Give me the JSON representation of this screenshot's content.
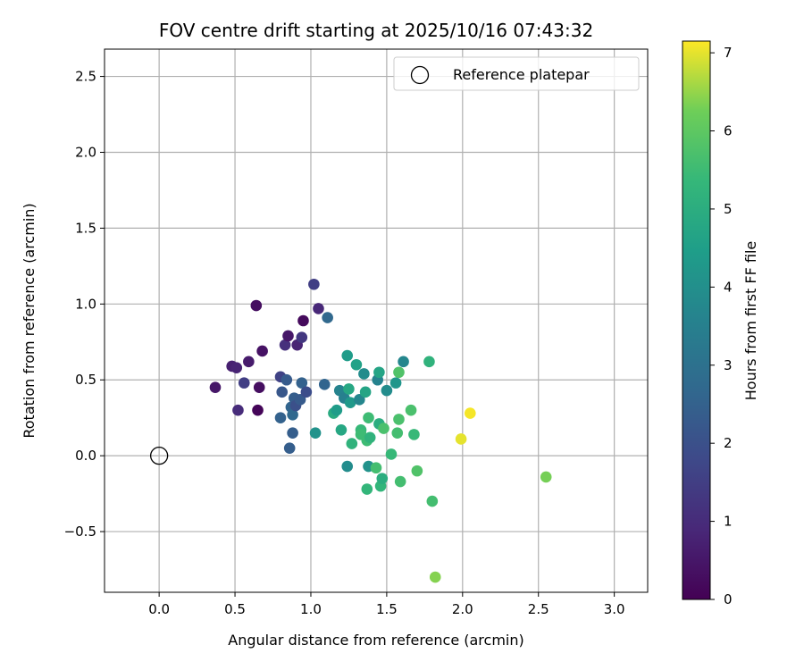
{
  "chart_data": {
    "type": "scatter",
    "title": "FOV centre drift starting at 2025/10/16 07:43:32",
    "xlabel": "Angular distance from reference (arcmin)",
    "ylabel": "Rotation from reference (arcmin)",
    "xlim": [
      -0.36,
      3.22
    ],
    "ylim": [
      -0.9,
      2.68
    ],
    "xticks": [
      0.0,
      0.5,
      1.0,
      1.5,
      2.0,
      2.5,
      3.0
    ],
    "xtick_labels": [
      "0.0",
      "0.5",
      "1.0",
      "1.5",
      "2.0",
      "2.5",
      "3.0"
    ],
    "yticks": [
      -0.5,
      0.0,
      0.5,
      1.0,
      1.5,
      2.0,
      2.5
    ],
    "ytick_labels": [
      "−0.5",
      "0.0",
      "0.5",
      "1.0",
      "1.5",
      "2.0",
      "2.5"
    ],
    "grid": true,
    "legend": {
      "position": "top-right",
      "entries": [
        "Reference platepar"
      ]
    },
    "reference_point": {
      "x": 0.0,
      "y": 0.0
    },
    "colorbar": {
      "label": "Hours from first FF file",
      "range": [
        0,
        7.15
      ],
      "ticks": [
        0,
        1,
        2,
        3,
        4,
        5,
        6,
        7
      ],
      "tick_labels": [
        "0",
        "1",
        "2",
        "3",
        "4",
        "5",
        "6",
        "7"
      ],
      "colormap": "viridis"
    },
    "points": [
      {
        "x": 0.37,
        "y": 0.45,
        "c": 0.5
      },
      {
        "x": 0.48,
        "y": 0.59,
        "c": 0.7
      },
      {
        "x": 0.51,
        "y": 0.58,
        "c": 0.8
      },
      {
        "x": 0.52,
        "y": 0.3,
        "c": 1.0
      },
      {
        "x": 0.56,
        "y": 0.48,
        "c": 1.5
      },
      {
        "x": 0.59,
        "y": 0.62,
        "c": 0.6
      },
      {
        "x": 0.64,
        "y": 0.99,
        "c": 0.3
      },
      {
        "x": 0.65,
        "y": 0.3,
        "c": 0.1
      },
      {
        "x": 0.66,
        "y": 0.45,
        "c": 0.3
      },
      {
        "x": 0.68,
        "y": 0.69,
        "c": 0.4
      },
      {
        "x": 0.8,
        "y": 0.52,
        "c": 1.6
      },
      {
        "x": 0.8,
        "y": 0.25,
        "c": 2.5
      },
      {
        "x": 0.81,
        "y": 0.42,
        "c": 2.2
      },
      {
        "x": 0.83,
        "y": 0.73,
        "c": 1.1
      },
      {
        "x": 0.84,
        "y": 0.5,
        "c": 2.3
      },
      {
        "x": 0.85,
        "y": 0.79,
        "c": 0.5
      },
      {
        "x": 0.86,
        "y": 0.05,
        "c": 2.4
      },
      {
        "x": 0.87,
        "y": 0.32,
        "c": 2.6
      },
      {
        "x": 0.88,
        "y": 0.15,
        "c": 2.4
      },
      {
        "x": 0.88,
        "y": 0.27,
        "c": 2.7
      },
      {
        "x": 0.89,
        "y": 0.38,
        "c": 2.4
      },
      {
        "x": 0.9,
        "y": 0.33,
        "c": 2.0
      },
      {
        "x": 0.91,
        "y": 0.73,
        "c": 0.8
      },
      {
        "x": 0.93,
        "y": 0.37,
        "c": 2.3
      },
      {
        "x": 0.94,
        "y": 0.78,
        "c": 1.3
      },
      {
        "x": 0.94,
        "y": 0.48,
        "c": 2.5
      },
      {
        "x": 0.95,
        "y": 0.89,
        "c": 0.2
      },
      {
        "x": 0.97,
        "y": 0.42,
        "c": 1.9
      },
      {
        "x": 1.02,
        "y": 1.13,
        "c": 1.5
      },
      {
        "x": 1.03,
        "y": 0.15,
        "c": 4.1
      },
      {
        "x": 1.05,
        "y": 0.97,
        "c": 0.9
      },
      {
        "x": 1.09,
        "y": 0.47,
        "c": 2.6
      },
      {
        "x": 1.11,
        "y": 0.91,
        "c": 2.7
      },
      {
        "x": 1.15,
        "y": 0.28,
        "c": 4.9
      },
      {
        "x": 1.17,
        "y": 0.3,
        "c": 4.4
      },
      {
        "x": 1.19,
        "y": 0.43,
        "c": 3.6
      },
      {
        "x": 1.2,
        "y": 0.17,
        "c": 4.8
      },
      {
        "x": 1.22,
        "y": 0.38,
        "c": 3.5
      },
      {
        "x": 1.24,
        "y": -0.07,
        "c": 3.9
      },
      {
        "x": 1.24,
        "y": 0.66,
        "c": 4.4
      },
      {
        "x": 1.25,
        "y": 0.44,
        "c": 4.8
      },
      {
        "x": 1.26,
        "y": 0.35,
        "c": 4.3
      },
      {
        "x": 1.27,
        "y": 0.08,
        "c": 5.2
      },
      {
        "x": 1.3,
        "y": 0.6,
        "c": 4.6
      },
      {
        "x": 1.32,
        "y": 0.37,
        "c": 3.7
      },
      {
        "x": 1.33,
        "y": 0.17,
        "c": 5.4
      },
      {
        "x": 1.33,
        "y": 0.14,
        "c": 5.5
      },
      {
        "x": 1.35,
        "y": 0.54,
        "c": 3.9
      },
      {
        "x": 1.36,
        "y": 0.42,
        "c": 4.7
      },
      {
        "x": 1.37,
        "y": 0.1,
        "c": 5.5
      },
      {
        "x": 1.37,
        "y": -0.22,
        "c": 5.3
      },
      {
        "x": 1.38,
        "y": 0.25,
        "c": 5.5
      },
      {
        "x": 1.38,
        "y": -0.07,
        "c": 4.1
      },
      {
        "x": 1.39,
        "y": 0.12,
        "c": 5.2
      },
      {
        "x": 1.43,
        "y": -0.08,
        "c": 5.6
      },
      {
        "x": 1.44,
        "y": 0.5,
        "c": 3.6
      },
      {
        "x": 1.45,
        "y": 0.21,
        "c": 5.0
      },
      {
        "x": 1.45,
        "y": 0.55,
        "c": 4.7
      },
      {
        "x": 1.46,
        "y": -0.2,
        "c": 5.3
      },
      {
        "x": 1.47,
        "y": -0.15,
        "c": 5.0
      },
      {
        "x": 1.48,
        "y": 0.18,
        "c": 5.7
      },
      {
        "x": 1.5,
        "y": 0.43,
        "c": 3.9
      },
      {
        "x": 1.53,
        "y": 0.01,
        "c": 5.4
      },
      {
        "x": 1.56,
        "y": 0.48,
        "c": 4.2
      },
      {
        "x": 1.57,
        "y": 0.15,
        "c": 5.6
      },
      {
        "x": 1.58,
        "y": 0.55,
        "c": 5.8
      },
      {
        "x": 1.58,
        "y": 0.24,
        "c": 5.7
      },
      {
        "x": 1.59,
        "y": -0.17,
        "c": 5.6
      },
      {
        "x": 1.61,
        "y": 0.62,
        "c": 3.7
      },
      {
        "x": 1.66,
        "y": 0.3,
        "c": 5.7
      },
      {
        "x": 1.68,
        "y": 0.14,
        "c": 5.4
      },
      {
        "x": 1.7,
        "y": -0.1,
        "c": 5.8
      },
      {
        "x": 1.78,
        "y": 0.62,
        "c": 5.2
      },
      {
        "x": 1.8,
        "y": -0.3,
        "c": 5.6
      },
      {
        "x": 1.82,
        "y": -0.8,
        "c": 6.4
      },
      {
        "x": 1.99,
        "y": 0.11,
        "c": 7.0
      },
      {
        "x": 2.05,
        "y": 0.28,
        "c": 7.1
      },
      {
        "x": 2.55,
        "y": -0.14,
        "c": 6.3
      }
    ]
  }
}
